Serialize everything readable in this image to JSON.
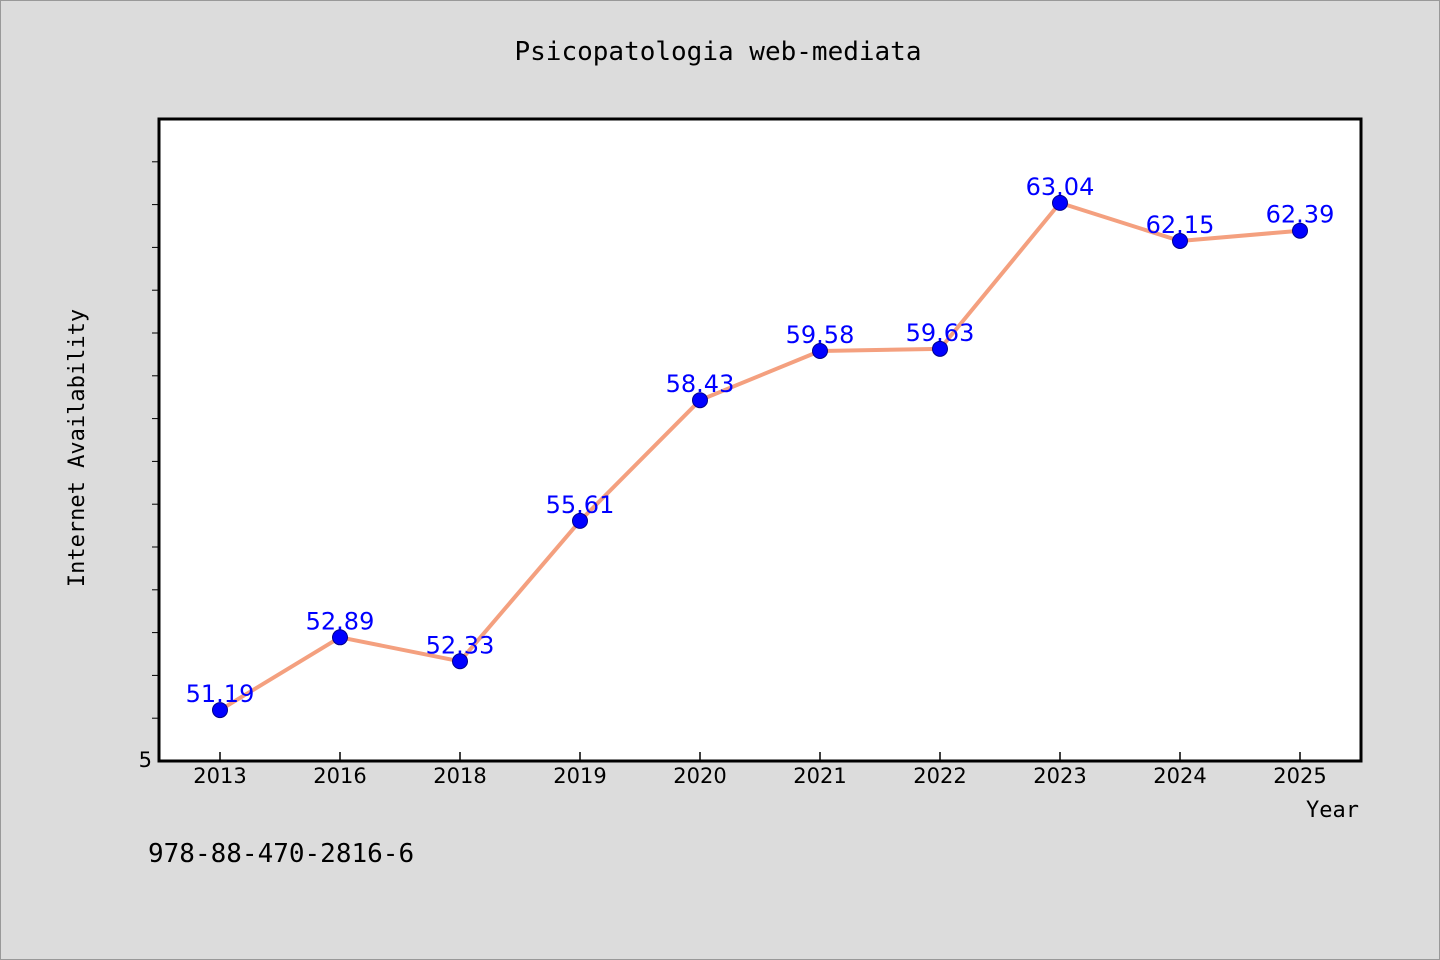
{
  "chart_data": {
    "type": "line",
    "title": "Psicopatologia web-mediata",
    "xlabel": "Year",
    "ylabel": "Internet Availability",
    "categories": [
      "2013",
      "2016",
      "2018",
      "2019",
      "2020",
      "2021",
      "2022",
      "2023",
      "2024",
      "2025"
    ],
    "series": [
      {
        "values": [
          51.19,
          52.89,
          52.33,
          55.61,
          58.43,
          59.58,
          59.63,
          63.04,
          62.15,
          62.39
        ],
        "labels": [
          "51.19",
          "52.89",
          "52.33",
          "55.61",
          "58.43",
          "59.58",
          "59.63",
          "63.04",
          "62.15",
          "62.39"
        ]
      }
    ],
    "y_tick_labels": [
      "5"
    ],
    "ylim": [
      50,
      65
    ],
    "grid": false,
    "colors": {
      "line": "#f4a07f",
      "marker": "#0000ff",
      "marker_edge": "#00008b",
      "data_label": "#0000ff",
      "plot_background": "#ffffff",
      "page_background": "#dcdcdc"
    }
  },
  "footer": {
    "isbn": "978-88-470-2816-6"
  }
}
